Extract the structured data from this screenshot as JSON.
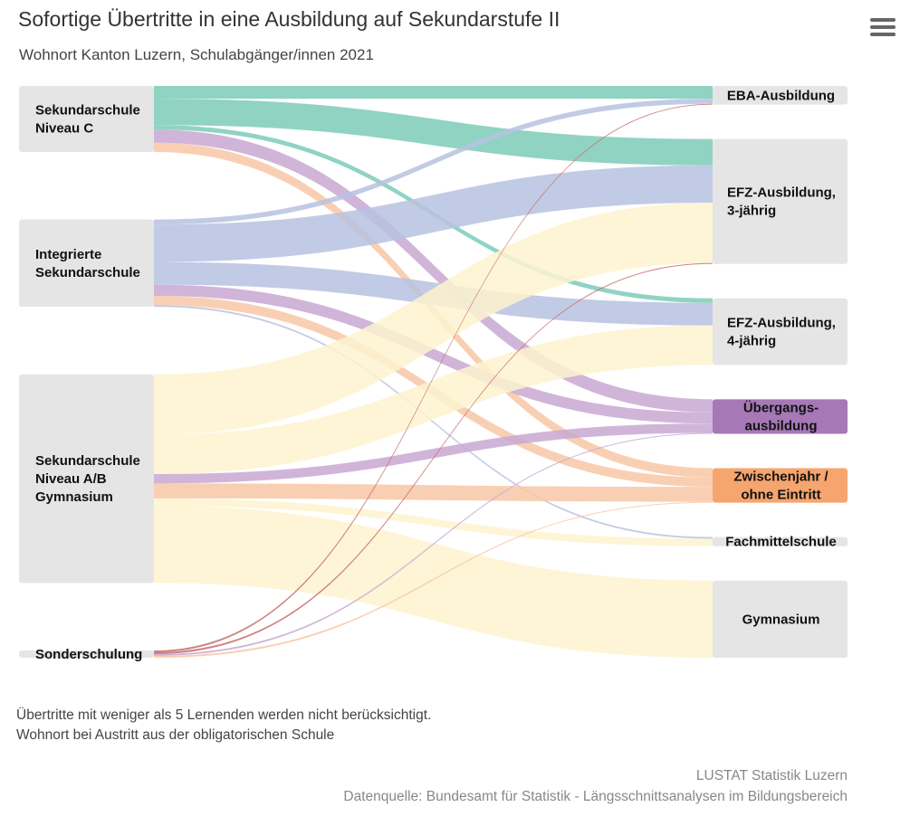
{
  "title": "Sofortige Übertritte in eine Ausbildung auf Sekundarstufe II",
  "subtitle": "Wohnort Kanton Luzern, Schulabgänger/innen 2021",
  "notes": [
    "Übertritte mit weniger als 5 Lernenden werden nicht berücksichtigt.",
    "Wohnort bei Austritt aus der obligatorischen Schule"
  ],
  "credits": {
    "publisher": "LUSTAT Statistik Luzern",
    "source": "Datenquelle: Bundesamt für Statistik - Längsschnittsanalysen im Bildungsbereich"
  },
  "menu_icon": "hamburger-menu-icon",
  "chart_data": {
    "type": "sankey",
    "sources": [
      {
        "id": "sek_c",
        "lines": [
          "Sekundarschule",
          "Niveau C"
        ],
        "color": "#7ecbb9"
      },
      {
        "id": "int",
        "lines": [
          "Integrierte",
          "Sekundarschule"
        ],
        "color": "#b7c2e1"
      },
      {
        "id": "sek_ab",
        "lines": [
          "Sekundarschule",
          "Niveau A/B",
          "Gymnasium"
        ],
        "color": "#fdf3cf"
      },
      {
        "id": "sonder",
        "lines": [
          "Sonderschulung"
        ],
        "color": "#c86a6a"
      }
    ],
    "targets": [
      {
        "id": "eba",
        "lines": [
          "EBA-Ausbildung"
        ],
        "color": "#e5e5e5"
      },
      {
        "id": "efz3",
        "lines": [
          "EFZ-Ausbildung,",
          "3-jährig"
        ],
        "color": "#e5e5e5"
      },
      {
        "id": "efz4",
        "lines": [
          "EFZ-Ausbildung,",
          "4-jährig"
        ],
        "color": "#e5e5e5"
      },
      {
        "id": "ueber",
        "lines": [
          "Übergangs-",
          "ausbildung"
        ],
        "color": "#a678b6"
      },
      {
        "id": "zwischen",
        "lines": [
          "Zwischenjahr /",
          "ohne Eintritt"
        ],
        "color": "#f6a56e"
      },
      {
        "id": "fms",
        "lines": [
          "Fachmittelschule"
        ],
        "color": "#e5e5e5"
      },
      {
        "id": "gym",
        "lines": [
          "Gymnasium"
        ],
        "color": "#e5e5e5"
      }
    ],
    "links": [
      {
        "from": "sek_c",
        "to": "eba",
        "value": 75,
        "color": "#7ecbb9"
      },
      {
        "from": "sek_c",
        "to": "efz3",
        "value": 155,
        "color": "#7ecbb9"
      },
      {
        "from": "sek_c",
        "to": "efz4",
        "value": 27,
        "color": "#7ecbb9"
      },
      {
        "from": "sek_c",
        "to": "ueber",
        "value": 77,
        "color": "#c8a8d2"
      },
      {
        "from": "sek_c",
        "to": "zwischen",
        "value": 55,
        "color": "#f8c7a6"
      },
      {
        "from": "int",
        "to": "eba",
        "value": 30,
        "color": "#b7c2e1"
      },
      {
        "from": "int",
        "to": "efz3",
        "value": 220,
        "color": "#b7c2e1"
      },
      {
        "from": "int",
        "to": "efz4",
        "value": 133,
        "color": "#b7c2e1"
      },
      {
        "from": "int",
        "to": "ueber",
        "value": 66,
        "color": "#c8a8d2"
      },
      {
        "from": "int",
        "to": "zwischen",
        "value": 55,
        "color": "#f8c7a6"
      },
      {
        "from": "int",
        "to": "fms",
        "value": 10,
        "color": "#b7c2e1"
      },
      {
        "from": "sek_ab",
        "to": "efz3",
        "value": 355,
        "color": "#fdf3cf"
      },
      {
        "from": "sek_ab",
        "to": "efz4",
        "value": 232,
        "color": "#fdf3cf"
      },
      {
        "from": "sek_ab",
        "to": "fms",
        "value": 44,
        "color": "#fdf3cf"
      },
      {
        "from": "sek_ab",
        "to": "gym",
        "value": 454,
        "color": "#fdf3cf"
      },
      {
        "from": "sek_ab",
        "to": "ueber",
        "value": 55,
        "color": "#c8a8d2"
      },
      {
        "from": "sek_ab",
        "to": "zwischen",
        "value": 88,
        "color": "#f8c7a6"
      },
      {
        "from": "sonder",
        "to": "eba",
        "value": 5,
        "color": "#c86a6a"
      },
      {
        "from": "sonder",
        "to": "efz3",
        "value": 5,
        "color": "#c86a6a"
      },
      {
        "from": "sonder",
        "to": "ueber",
        "value": 5,
        "color": "#c8a8d2"
      },
      {
        "from": "sonder",
        "to": "zwischen",
        "value": 5,
        "color": "#f8c7a6"
      }
    ]
  }
}
